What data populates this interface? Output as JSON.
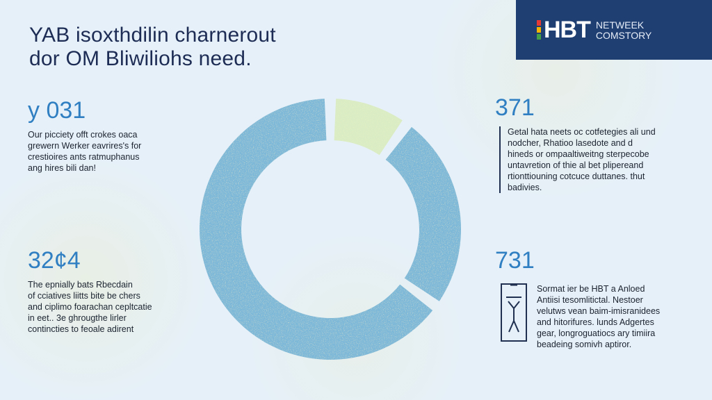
{
  "header": {
    "headline_lines": [
      "YAB isoxthdilin charnerout",
      "dor OM Bliwiliohs need."
    ]
  },
  "brand": {
    "main": "HBT",
    "sub_lines": [
      "NETWEEK",
      "COMSTORY"
    ],
    "colors": [
      "#e53935",
      "#f4b400",
      "#43a047",
      "#1e88e5"
    ]
  },
  "stats": [
    {
      "number": "y 031",
      "text_lines": [
        "Our picciety offt crokes oaca",
        "grewern Werker eavrires's for",
        "crestioires ants ratmuphanus",
        "ang hires bili dan!"
      ]
    },
    {
      "number": "32¢4",
      "text_lines": [
        "The epnially bats Rbecdain",
        "of cciatives liitts bite be chers",
        "and ciplimo foarachan cepltcatie",
        "in eet.. 3e ghrougthe lirler",
        "contincties to feoale adirent"
      ]
    },
    {
      "number": "371",
      "text_lines": [
        "Getal hata neets oc cotfetegies ali und",
        "nodcher, Rhatioo lasedote and d",
        "hineds or ompaaltiweitng sterpecobe",
        "untavretion of thie al bet plipereand",
        "rtionttiouning cotcuce duttanes. thut",
        "badivies."
      ]
    },
    {
      "number": "731",
      "text_lines": [
        "Sormat ier be HBT a Anloed",
        "Antiisi tesomlitictal. Nestoer",
        "velutws vean baim-imisranidees",
        "and hitorifures. lunds Adgertes",
        "gear, longroguatiocs ary timiira",
        "beadeing somivh aptiror."
      ]
    }
  ],
  "chart_data": {
    "type": "pie",
    "variant": "donut",
    "values": [
      10,
      25,
      65
    ],
    "colors": [
      "#d9ecc4",
      "#7db8d8",
      "#7db8d8"
    ]
  }
}
